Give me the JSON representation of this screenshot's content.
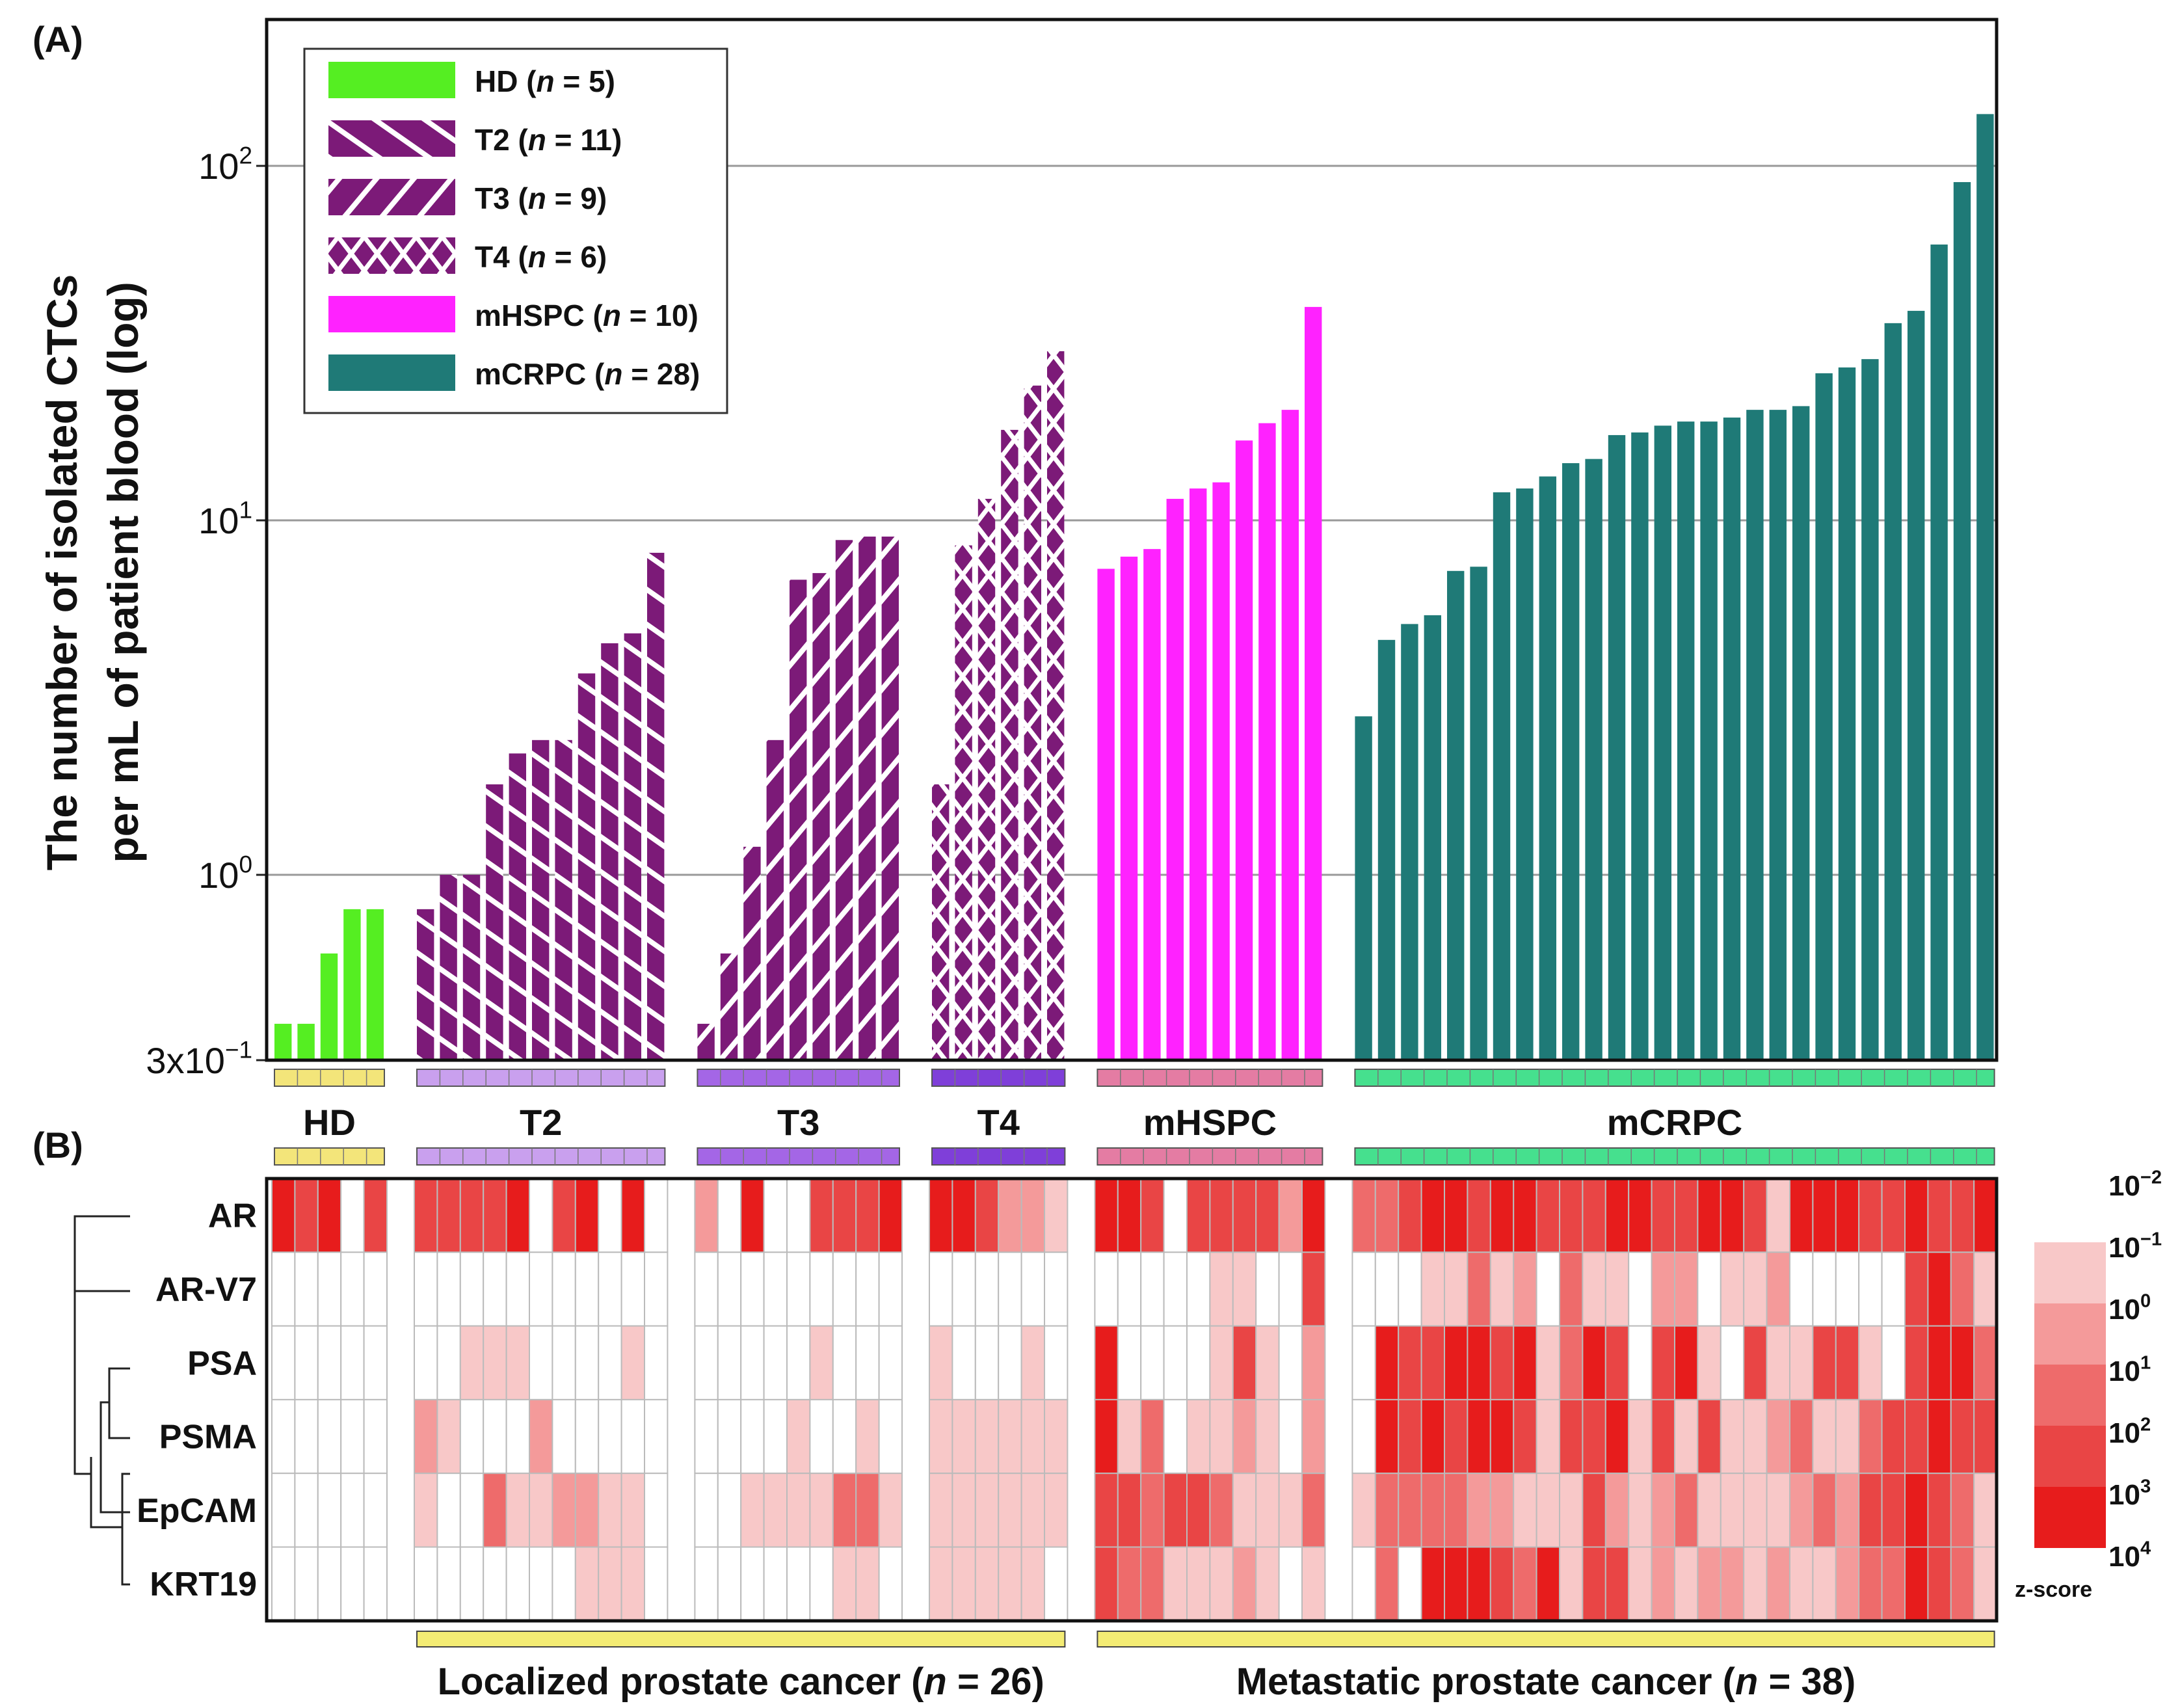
{
  "panel_a_label": "(A)",
  "panel_b_label": "(B)",
  "colors": {
    "HD": "#55ee22",
    "T": "#7c1a78",
    "mHSPC": "#ff22ff",
    "mCRPC": "#1f7a77",
    "track_HD": "#f3e57a",
    "track_T2": "#c9a0ee",
    "track_T3": "#a466e6",
    "track_T4": "#7f3fd9",
    "track_mHSPC": "#e47ca3",
    "track_mCRPC": "#46e08e",
    "bracket": "#f4ec74",
    "heat_levels": [
      "#ffffff",
      "#f8c8c8",
      "#f49a9a",
      "#ee6b6b",
      "#e94545",
      "#e71c1c"
    ]
  },
  "chart_data": [
    {
      "type": "bar",
      "scale": "log",
      "ylabel_lines": [
        "The number of isolated CTCs",
        "per mL of patient blood (log)"
      ],
      "yticks": [
        {
          "value": 0.3,
          "base": "3x10",
          "exp": "−1"
        },
        {
          "value": 1,
          "base": "10",
          "exp": "0"
        },
        {
          "value": 10,
          "base": "10",
          "exp": "1"
        },
        {
          "value": 100,
          "base": "10",
          "exp": "2"
        }
      ],
      "ylim": [
        0.3,
        250
      ],
      "groups": [
        {
          "name": "HD",
          "n_label": "HD (n = 5)",
          "legend_pre": "HD (",
          "n": 5,
          "pattern": "solid",
          "values": [
            0.38,
            0.38,
            0.6,
            0.8,
            0.8
          ]
        },
        {
          "name": "T2",
          "n_label": "T2 (n = 11)",
          "legend_pre": "T2 (",
          "n": 11,
          "pattern": "diag",
          "values": [
            0.8,
            1.0,
            1.0,
            1.8,
            2.2,
            2.4,
            2.4,
            3.7,
            4.5,
            4.8,
            8.1
          ]
        },
        {
          "name": "T3",
          "n_label": "T3 (n = 9)",
          "legend_pre": "T3 (",
          "n": 9,
          "pattern": "antidiag",
          "values": [
            0.38,
            0.6,
            1.2,
            2.4,
            6.8,
            7.1,
            8.8,
            9.0,
            9.0
          ]
        },
        {
          "name": "T4",
          "n_label": "T4 (n = 6)",
          "legend_pre": "T4 (",
          "n": 6,
          "pattern": "cross",
          "values": [
            1.8,
            8.5,
            11.5,
            18.0,
            24.0,
            30.0
          ]
        },
        {
          "name": "mHSPC",
          "n_label": "mHSPC (n = 10)",
          "legend_pre": "mHSPC (",
          "n": 10,
          "pattern": "solid",
          "values": [
            7.3,
            7.9,
            8.3,
            11.5,
            12.3,
            12.8,
            16.8,
            18.8,
            20.5,
            40.0
          ]
        },
        {
          "name": "mCRPC",
          "n_label": "mCRPC (n = 28)",
          "legend_pre": "mCRPC (",
          "n": 28,
          "pattern": "solid",
          "values": [
            2.8,
            4.6,
            5.1,
            5.4,
            7.2,
            7.4,
            12.0,
            12.3,
            13.3,
            14.5,
            14.9,
            17.4,
            17.7,
            18.5,
            19.0,
            19.0,
            19.5,
            20.5,
            20.5,
            21.0,
            26.0,
            27.0,
            28.5,
            36.0,
            39.0,
            60.0,
            90.0,
            140.0
          ]
        }
      ],
      "legend_n_suffix": [
        " = 5)",
        " = 11)",
        " = 9)",
        " = 6)",
        " = 10)",
        " = 28)"
      ]
    },
    {
      "type": "heatmap",
      "group_labels": [
        "HD",
        "T2",
        "T3",
        "T4",
        "mHSPC",
        "mCRPC"
      ],
      "genes": [
        "AR",
        "AR-V7",
        "PSA",
        "PSMA",
        "EpCAM",
        "KRT19"
      ],
      "colorbar_labels": [
        {
          "base": "10",
          "exp": "−2"
        },
        {
          "base": "10",
          "exp": "−1"
        },
        {
          "base": "10",
          "exp": "0"
        },
        {
          "base": "10",
          "exp": "1"
        },
        {
          "base": "10",
          "exp": "2"
        },
        {
          "base": "10",
          "exp": "3"
        },
        {
          "base": "10",
          "exp": "4"
        }
      ],
      "colorbar_title": "z-score",
      "levels": {
        "AR": [
          5,
          4,
          5,
          0,
          4,
          4,
          4,
          4,
          4,
          5,
          0,
          4,
          5,
          0,
          5,
          0,
          2,
          0,
          5,
          0,
          0,
          4,
          4,
          4,
          5,
          5,
          5,
          4,
          2,
          2,
          1,
          5,
          5,
          4,
          0,
          4,
          4,
          4,
          4,
          2,
          5,
          3,
          3,
          4,
          5,
          5,
          4,
          5,
          5,
          4,
          4,
          4,
          5,
          5,
          4,
          4,
          5,
          5,
          4,
          1,
          5,
          5,
          5,
          4,
          4,
          5,
          4,
          4,
          5,
          4,
          4,
          5,
          5,
          5
        ],
        "AR-V7": [
          0,
          0,
          0,
          0,
          0,
          0,
          0,
          0,
          0,
          0,
          0,
          0,
          0,
          0,
          0,
          0,
          0,
          0,
          0,
          0,
          0,
          0,
          0,
          0,
          0,
          0,
          0,
          0,
          0,
          0,
          0,
          0,
          0,
          0,
          0,
          0,
          1,
          1,
          0,
          0,
          4,
          0,
          0,
          0,
          1,
          1,
          3,
          1,
          2,
          0,
          3,
          1,
          1,
          0,
          2,
          2,
          0,
          1,
          1,
          2,
          0,
          0,
          0,
          0,
          0,
          4,
          5,
          3,
          1,
          2,
          1,
          3,
          2,
          2
        ],
        "PSA": [
          0,
          0,
          0,
          0,
          0,
          0,
          0,
          1,
          1,
          1,
          0,
          0,
          0,
          0,
          1,
          0,
          0,
          0,
          0,
          0,
          0,
          1,
          0,
          0,
          0,
          1,
          0,
          0,
          0,
          1,
          0,
          5,
          0,
          0,
          0,
          0,
          1,
          4,
          1,
          0,
          2,
          0,
          5,
          4,
          4,
          5,
          5,
          4,
          5,
          1,
          3,
          5,
          4,
          0,
          4,
          5,
          1,
          0,
          4,
          1,
          1,
          4,
          4,
          1,
          0,
          4,
          5,
          5,
          3,
          1,
          5,
          1,
          1,
          1
        ],
        "PSMA": [
          0,
          0,
          0,
          0,
          0,
          2,
          1,
          0,
          0,
          0,
          2,
          0,
          0,
          0,
          0,
          0,
          0,
          0,
          0,
          0,
          1,
          0,
          0,
          1,
          0,
          1,
          1,
          1,
          1,
          1,
          1,
          5,
          1,
          3,
          0,
          1,
          1,
          2,
          1,
          0,
          2,
          0,
          5,
          4,
          5,
          4,
          5,
          5,
          4,
          1,
          4,
          4,
          5,
          1,
          4,
          1,
          4,
          1,
          1,
          2,
          3,
          1,
          1,
          3,
          4,
          4,
          5,
          4,
          4,
          3,
          3,
          5,
          2,
          4
        ],
        "EpCAM": [
          0,
          0,
          0,
          0,
          0,
          1,
          0,
          0,
          3,
          1,
          1,
          2,
          2,
          1,
          1,
          0,
          0,
          0,
          1,
          1,
          1,
          1,
          3,
          3,
          1,
          1,
          1,
          1,
          1,
          1,
          1,
          4,
          4,
          3,
          4,
          4,
          3,
          1,
          1,
          1,
          3,
          1,
          3,
          3,
          3,
          3,
          2,
          2,
          1,
          1,
          1,
          4,
          2,
          1,
          2,
          3,
          1,
          1,
          1,
          1,
          2,
          3,
          2,
          4,
          4,
          5,
          4,
          3,
          1,
          2,
          3,
          3,
          4,
          5
        ],
        "KRT19": [
          0,
          0,
          0,
          0,
          0,
          0,
          0,
          0,
          0,
          0,
          0,
          0,
          1,
          1,
          1,
          0,
          0,
          0,
          0,
          0,
          0,
          0,
          1,
          1,
          0,
          1,
          1,
          1,
          1,
          1,
          0,
          4,
          3,
          3,
          1,
          1,
          1,
          2,
          1,
          0,
          1,
          0,
          3,
          0,
          5,
          5,
          5,
          4,
          3,
          5,
          1,
          4,
          4,
          1,
          2,
          1,
          2,
          2,
          1,
          2,
          1,
          1,
          2,
          3,
          3,
          5,
          4,
          3,
          1,
          1,
          1,
          2,
          4,
          0
        ]
      },
      "bottom_brackets": [
        {
          "label_pre": "Localized prostate cancer (",
          "label_post": " = 26)"
        },
        {
          "label_pre": "Metastatic prostate cancer (",
          "label_post": " = 38)"
        }
      ],
      "n_symbol": "n"
    }
  ]
}
